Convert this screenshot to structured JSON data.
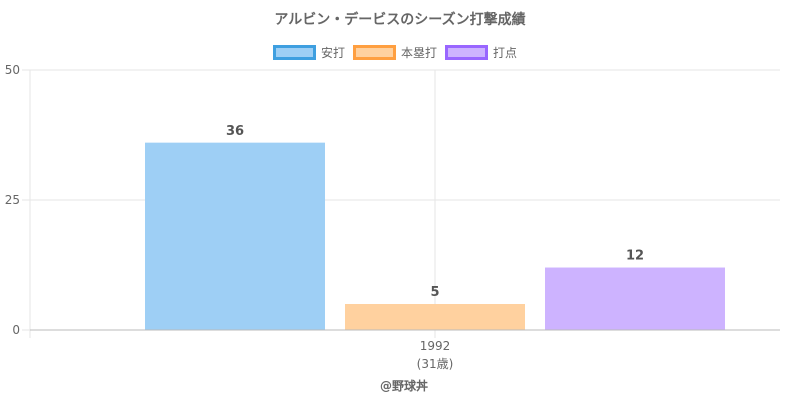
{
  "chart_data": {
    "type": "bar",
    "title": "アルビン・デービスのシーズン打撃成績",
    "categories": [
      "1992"
    ],
    "category_sublabels": [
      "(31歳)"
    ],
    "series": [
      {
        "name": "安打",
        "values": [
          36
        ],
        "fill": "#9ecff5",
        "stroke": "#3e9fe0"
      },
      {
        "name": "本塁打",
        "values": [
          5
        ],
        "fill": "#ffd19f",
        "stroke": "#ff9f40"
      },
      {
        "name": "打点",
        "values": [
          12
        ],
        "fill": "#cdb3ff",
        "stroke": "#9966ff"
      }
    ],
    "data_labels": [
      "36",
      "5",
      "12"
    ],
    "y_ticks": [
      "0",
      "25",
      "50"
    ],
    "ylim": [
      0,
      50
    ],
    "xlabel": "",
    "ylabel": "",
    "grid": true,
    "legend_position": "top",
    "credit": "@野球丼"
  }
}
